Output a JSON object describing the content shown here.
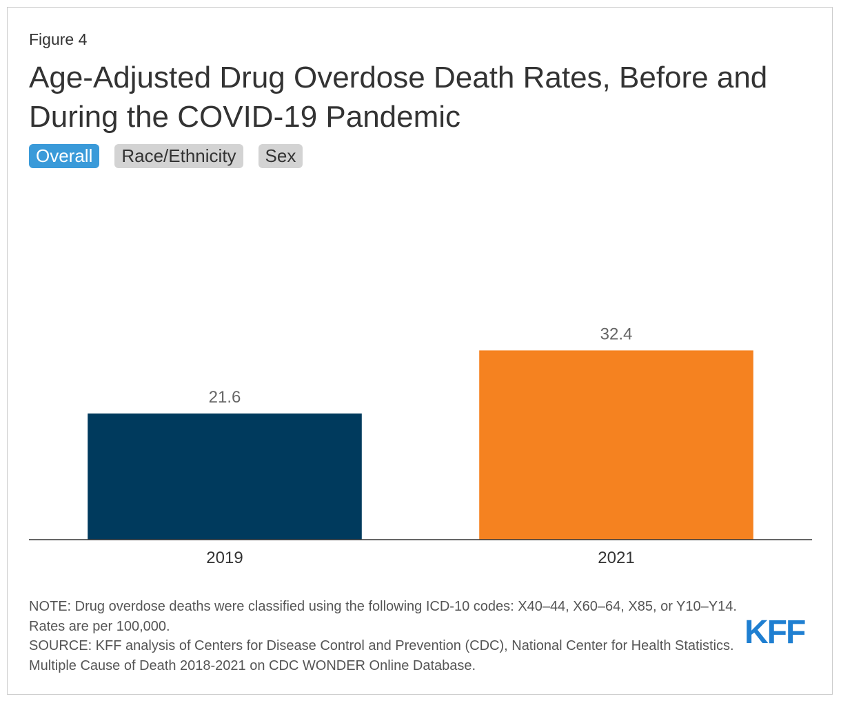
{
  "chart_data": {
    "type": "bar",
    "figure_label": "Figure 4",
    "title": "Age-Adjusted Drug Overdose Death Rates, Before and During the COVID-19 Pandemic",
    "tabs": [
      "Overall",
      "Race/Ethnicity",
      "Sex"
    ],
    "active_tab": 0,
    "categories": [
      "2019",
      "2021"
    ],
    "values": [
      21.6,
      32.4
    ],
    "colors": [
      "#003a5d",
      "#f58220"
    ],
    "ylim": [
      0,
      40
    ],
    "note": "NOTE: Drug overdose deaths were classified using the following ICD-10 codes: X40–44, X60–64, X85, or Y10–Y14. Rates are per 100,000.",
    "source": "SOURCE: KFF analysis of Centers for Disease Control and Prevention (CDC), National Center for Health Statistics. Multiple Cause of Death 2018-2021 on CDC WONDER Online Database.",
    "logo": "KFF"
  }
}
